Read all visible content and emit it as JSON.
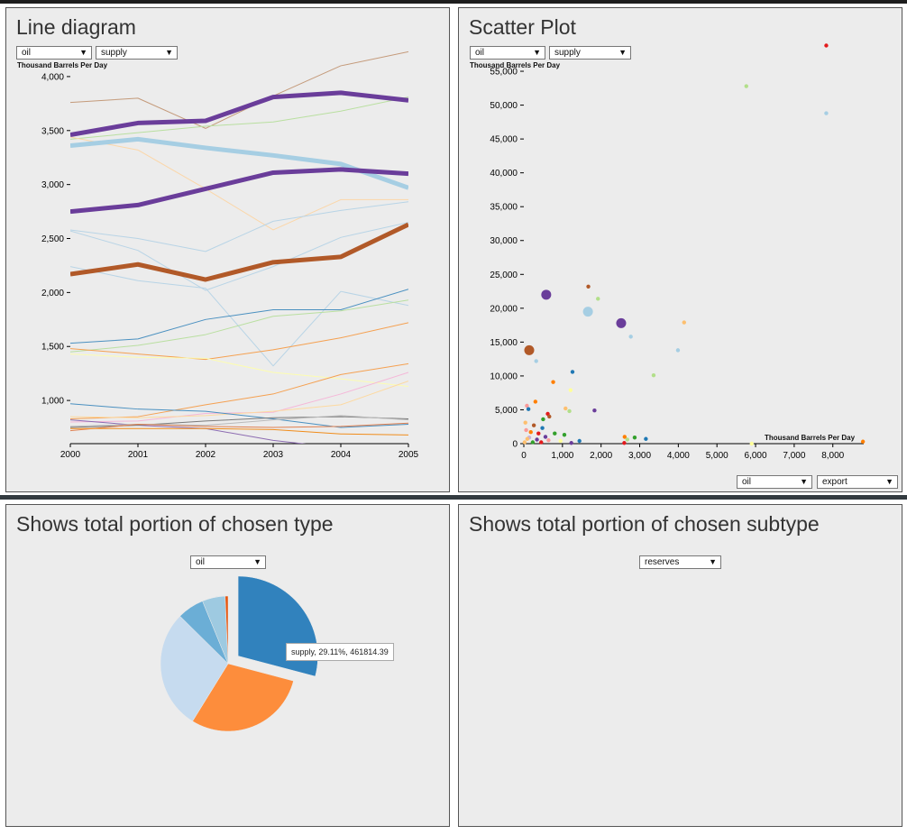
{
  "panels": {
    "line": {
      "title": "Line diagram",
      "select_type": "oil",
      "select_subtype": "supply",
      "unit_label": "Thousand Barrels Per Day"
    },
    "scatter": {
      "title": "Scatter Plot",
      "select_y_type": "oil",
      "select_y_subtype": "supply",
      "y_unit_label": "Thousand Barrels Per Day",
      "x_unit_label": "Thousand Barrels Per Day",
      "select_x_type": "oil",
      "select_x_subtype": "export"
    },
    "pie": {
      "title": "Shows total portion of chosen type",
      "select_type": "oil",
      "tooltip": "supply, 29.11%, 461814.39"
    },
    "pie2": {
      "title": "Shows total portion of chosen subtype",
      "select_subtype": "reserves"
    }
  },
  "chart_data": [
    {
      "type": "line",
      "x": [
        2000,
        2001,
        2002,
        2003,
        2004,
        2005
      ],
      "ylim": [
        600,
        4300
      ],
      "yticks": [
        1000,
        1500,
        2000,
        2500,
        3000,
        3500,
        4000
      ],
      "yticklabels": [
        "1,000",
        "1,500",
        "2,000",
        "2,500",
        "3,000",
        "3,500",
        "4,000"
      ],
      "ylabel": "Thousand Barrels Per Day",
      "series": [
        {
          "values": [
            3760,
            3800,
            3520,
            3820,
            4100,
            4230
          ],
          "color": "#c49a7a",
          "width": 1
        },
        {
          "values": [
            3420,
            3480,
            3540,
            3580,
            3680,
            3810
          ],
          "color": "#b9dfa0",
          "width": 1
        },
        {
          "values": [
            3440,
            3320,
            2960,
            2580,
            2860,
            2860
          ],
          "color": "#fbd6a8",
          "width": 1
        },
        {
          "values": [
            2580,
            2500,
            2380,
            2660,
            2760,
            2840
          ],
          "color": "#b8d4e6",
          "width": 1
        },
        {
          "values": [
            2570,
            2390,
            2020,
            2240,
            2510,
            2650
          ],
          "color": "#b8d4e6",
          "width": 1
        },
        {
          "values": [
            2240,
            2110,
            2040,
            1320,
            2010,
            1880
          ],
          "color": "#b8d4e6",
          "width": 1
        },
        {
          "values": [
            1530,
            1570,
            1750,
            1840,
            1840,
            2030
          ],
          "color": "#4a90c0",
          "width": 1
        },
        {
          "values": [
            1450,
            1510,
            1610,
            1780,
            1830,
            1930
          ],
          "color": "#b9dfa0",
          "width": 1
        },
        {
          "values": [
            1480,
            1430,
            1380,
            1470,
            1580,
            1720
          ],
          "color": "#f5a050",
          "width": 1
        },
        {
          "values": [
            1430,
            1400,
            1390,
            1260,
            1200,
            1130
          ],
          "color": "#fdfdb0",
          "width": 1
        },
        {
          "values": [
            830,
            850,
            960,
            1060,
            1240,
            1340
          ],
          "color": "#f5a050",
          "width": 1
        },
        {
          "values": [
            800,
            810,
            880,
            890,
            1060,
            1260
          ],
          "color": "#f5b7d8",
          "width": 1
        },
        {
          "values": [
            850,
            840,
            860,
            900,
            960,
            1180
          ],
          "color": "#fdd9a0",
          "width": 1
        },
        {
          "values": [
            970,
            920,
            900,
            830,
            750,
            780
          ],
          "color": "#4a90c0",
          "width": 1
        },
        {
          "values": [
            820,
            770,
            740,
            630,
            560,
            580
          ],
          "color": "#8c6bb1",
          "width": 1
        },
        {
          "values": [
            750,
            770,
            810,
            840,
            850,
            830
          ],
          "color": "#7a7a7a",
          "width": 1
        },
        {
          "values": [
            760,
            780,
            770,
            820,
            860,
            820
          ],
          "color": "#b9b9b9",
          "width": 1
        },
        {
          "values": [
            720,
            780,
            760,
            750,
            760,
            790
          ],
          "color": "#e08050",
          "width": 1
        },
        {
          "values": [
            740,
            740,
            740,
            730,
            690,
            680
          ],
          "color": "#f08c1a",
          "width": 1
        },
        {
          "values": [
            3360,
            3420,
            3340,
            3270,
            3190,
            2970
          ],
          "color": "#a6cee3",
          "width": 5
        },
        {
          "values": [
            3460,
            3570,
            3590,
            3810,
            3850,
            3780
          ],
          "color": "#6a3d9a",
          "width": 5
        },
        {
          "values": [
            2750,
            2810,
            2960,
            3110,
            3140,
            3100
          ],
          "color": "#6a3d9a",
          "width": 5
        },
        {
          "values": [
            2170,
            2260,
            2120,
            2280,
            2330,
            2630
          ],
          "color": "#b15928",
          "width": 5
        }
      ]
    },
    {
      "type": "scatter",
      "xlim": [
        0,
        8800
      ],
      "ylim": [
        0,
        59000
      ],
      "xticks": [
        0,
        1000,
        2000,
        3000,
        4000,
        5000,
        6000,
        7000,
        8000
      ],
      "xticklabels": [
        "0",
        "1,000",
        "2,000",
        "3,000",
        "4,000",
        "5,000",
        "6,000",
        "7,000",
        "8,000"
      ],
      "yticks": [
        0,
        5000,
        10000,
        15000,
        20000,
        25000,
        30000,
        35000,
        40000,
        45000,
        50000,
        55000
      ],
      "yticklabels": [
        "0",
        "5,000",
        "10,000",
        "15,000",
        "20,000",
        "25,000",
        "30,000",
        "35,000",
        "40,000",
        "45,000",
        "50,000",
        "55,000"
      ],
      "xlabel": "Thousand Barrels Per Day",
      "ylabel": "Thousand Barrels Per Day",
      "points": [
        {
          "x": 7830,
          "y": 58800,
          "r": 2,
          "color": "#e31a1c"
        },
        {
          "x": 5760,
          "y": 52800,
          "r": 2,
          "color": "#b2df8a"
        },
        {
          "x": 7830,
          "y": 48800,
          "r": 2,
          "color": "#a6cee3"
        },
        {
          "x": 580,
          "y": 22000,
          "r": 5,
          "color": "#6a3d9a"
        },
        {
          "x": 1670,
          "y": 23200,
          "r": 2,
          "color": "#b15928"
        },
        {
          "x": 1920,
          "y": 21400,
          "r": 2,
          "color": "#b2df8a"
        },
        {
          "x": 1660,
          "y": 19500,
          "r": 5,
          "color": "#a6cee3"
        },
        {
          "x": 2520,
          "y": 17800,
          "r": 5,
          "color": "#6a3d9a"
        },
        {
          "x": 4150,
          "y": 17900,
          "r": 2,
          "color": "#fdbf6f"
        },
        {
          "x": 2770,
          "y": 15800,
          "r": 2,
          "color": "#a6cee3"
        },
        {
          "x": 140,
          "y": 13800,
          "r": 5,
          "color": "#b15928"
        },
        {
          "x": 3990,
          "y": 13800,
          "r": 2,
          "color": "#a6cee3"
        },
        {
          "x": 320,
          "y": 12200,
          "r": 2,
          "color": "#a6cee3"
        },
        {
          "x": 1260,
          "y": 10600,
          "r": 2,
          "color": "#1f78b4"
        },
        {
          "x": 3360,
          "y": 10100,
          "r": 2,
          "color": "#b2df8a"
        },
        {
          "x": 760,
          "y": 9100,
          "r": 2,
          "color": "#ff7f00"
        },
        {
          "x": 1210,
          "y": 7900,
          "r": 2,
          "color": "#ffff99"
        },
        {
          "x": 300,
          "y": 6200,
          "r": 2,
          "color": "#ff7f00"
        },
        {
          "x": 80,
          "y": 5600,
          "r": 2,
          "color": "#fb9a99"
        },
        {
          "x": 120,
          "y": 5100,
          "r": 2,
          "color": "#1f78b4"
        },
        {
          "x": 1080,
          "y": 5200,
          "r": 2,
          "color": "#fdbf6f"
        },
        {
          "x": 1180,
          "y": 4800,
          "r": 2,
          "color": "#b2df8a"
        },
        {
          "x": 1830,
          "y": 4900,
          "r": 2,
          "color": "#6a3d9a"
        },
        {
          "x": 620,
          "y": 4400,
          "r": 2,
          "color": "#e31a1c"
        },
        {
          "x": 660,
          "y": 4000,
          "r": 2,
          "color": "#b15928"
        },
        {
          "x": 500,
          "y": 3600,
          "r": 2,
          "color": "#33a02c"
        },
        {
          "x": 40,
          "y": 3100,
          "r": 2,
          "color": "#fdbf6f"
        },
        {
          "x": 260,
          "y": 2700,
          "r": 2,
          "color": "#b15928"
        },
        {
          "x": 480,
          "y": 2300,
          "r": 2,
          "color": "#1f78b4"
        },
        {
          "x": 60,
          "y": 2000,
          "r": 2,
          "color": "#fb9a99"
        },
        {
          "x": 180,
          "y": 1700,
          "r": 2,
          "color": "#ff7f00"
        },
        {
          "x": 380,
          "y": 1500,
          "r": 2,
          "color": "#e31a1c"
        },
        {
          "x": 800,
          "y": 1500,
          "r": 2,
          "color": "#33a02c"
        },
        {
          "x": 1050,
          "y": 1300,
          "r": 2,
          "color": "#33a02c"
        },
        {
          "x": 560,
          "y": 1000,
          "r": 2,
          "color": "#6a3d9a"
        },
        {
          "x": 140,
          "y": 900,
          "r": 2,
          "color": "#cab2d6"
        },
        {
          "x": 90,
          "y": 700,
          "r": 2,
          "color": "#fdbf6f"
        },
        {
          "x": 340,
          "y": 600,
          "r": 2,
          "color": "#6a3d9a"
        },
        {
          "x": 640,
          "y": 500,
          "r": 2,
          "color": "#fb9a99"
        },
        {
          "x": 950,
          "y": 400,
          "r": 2,
          "color": "#ffff99"
        },
        {
          "x": 1440,
          "y": 400,
          "r": 2,
          "color": "#1f78b4"
        },
        {
          "x": 20,
          "y": 200,
          "r": 2,
          "color": "#fdbf6f"
        },
        {
          "x": 230,
          "y": 200,
          "r": 2,
          "color": "#33a02c"
        },
        {
          "x": 450,
          "y": 200,
          "r": 2,
          "color": "#e31a1c"
        },
        {
          "x": 1230,
          "y": 100,
          "r": 2,
          "color": "#6a3d9a"
        },
        {
          "x": 2610,
          "y": 1000,
          "r": 2,
          "color": "#ff7f00"
        },
        {
          "x": 2680,
          "y": 600,
          "r": 2,
          "color": "#b2df8a"
        },
        {
          "x": 2870,
          "y": 900,
          "r": 2,
          "color": "#33a02c"
        },
        {
          "x": 3160,
          "y": 700,
          "r": 2,
          "color": "#1f78b4"
        },
        {
          "x": 2600,
          "y": 100,
          "r": 2,
          "color": "#e31a1c"
        },
        {
          "x": 5900,
          "y": 0,
          "r": 2,
          "color": "#ffff99"
        },
        {
          "x": 8780,
          "y": 300,
          "r": 2,
          "color": "#ff7f00"
        }
      ]
    },
    {
      "type": "pie",
      "slices": [
        {
          "percent": 29.11,
          "color": "#3182bd",
          "highlighted": true
        },
        {
          "percent": 29.7,
          "color": "#fd8d3c"
        },
        {
          "percent": 28.6,
          "color": "#c6dbef"
        },
        {
          "percent": 6.4,
          "color": "#6baed6"
        },
        {
          "percent": 5.5,
          "color": "#9ecae1"
        },
        {
          "percent": 0.69,
          "color": "#e6550d"
        }
      ]
    }
  ]
}
